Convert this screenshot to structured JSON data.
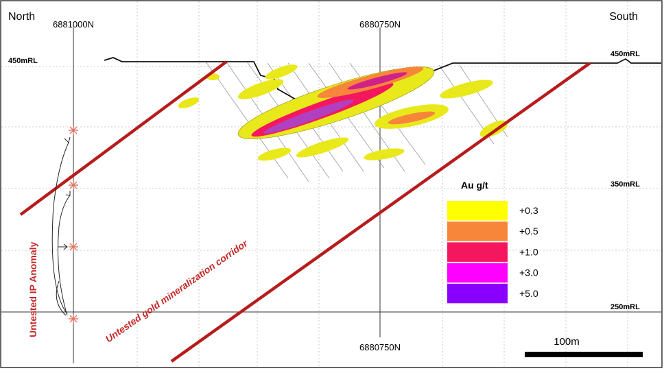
{
  "header": {
    "left": "North",
    "right": "South"
  },
  "northings": {
    "top_left": "6881000N",
    "top_center": "6880750N",
    "bottom_center": "6880750N"
  },
  "elevations": {
    "left_450": "450mRL",
    "right_450": "450mRL",
    "right_350": "350mRL",
    "right_250": "250mRL"
  },
  "annotations": {
    "ip_anomaly": "Untested IP Anomaly",
    "corridor": "Untested gold mineralization corridor"
  },
  "legend": {
    "title": "Au g/t",
    "items": [
      {
        "label": "+0.3",
        "color": "#ffff00"
      },
      {
        "label": "+0.5",
        "color": "#f7863a"
      },
      {
        "label": "+1.0",
        "color": "#f5175e"
      },
      {
        "label": "+3.0",
        "color": "#ff00ff"
      },
      {
        "label": "+5.0",
        "color": "#8a00ff"
      }
    ]
  },
  "scale_bar": {
    "label": "100m"
  }
}
